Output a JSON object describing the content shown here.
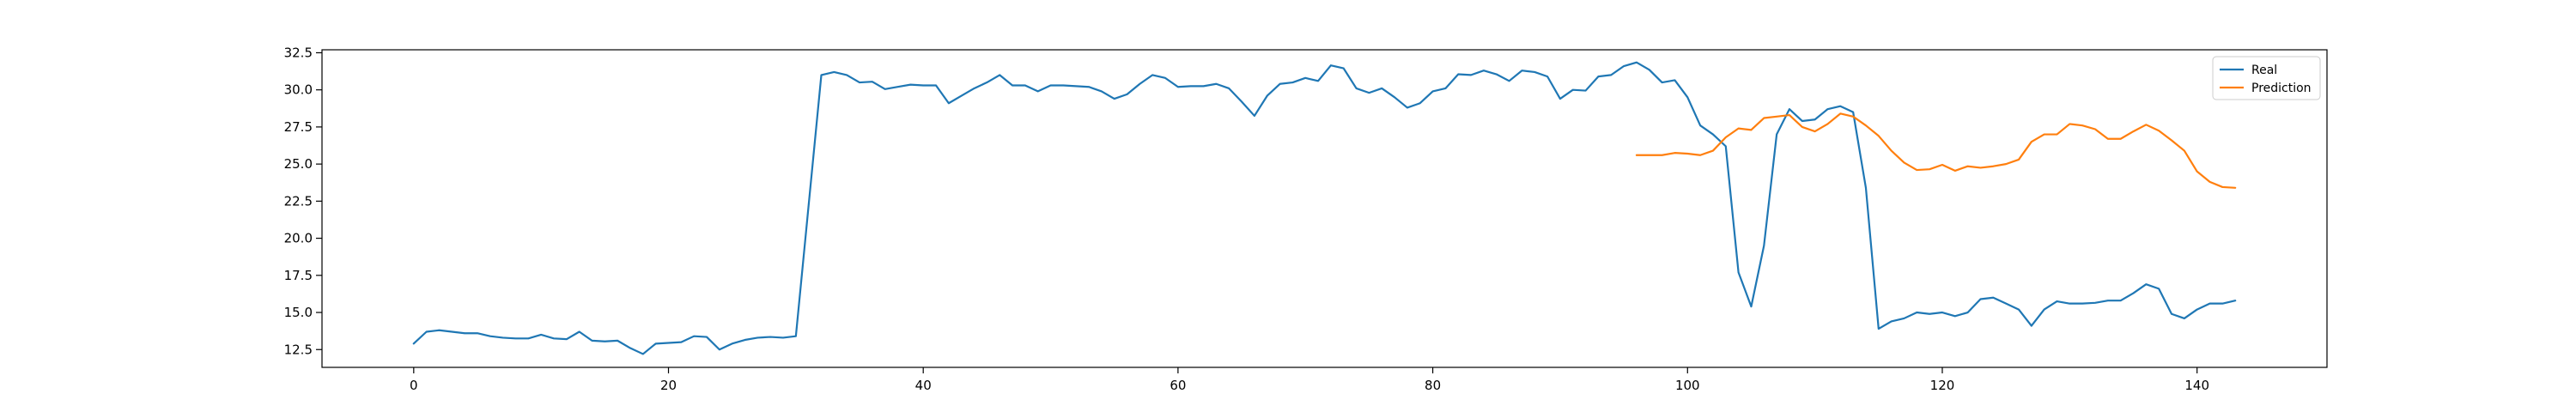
{
  "chart_data": {
    "type": "line",
    "title": "",
    "xlabel": "",
    "ylabel": "",
    "xlim": [
      -7.2,
      150.2
    ],
    "ylim": [
      11.3,
      32.7
    ],
    "x_ticks": [
      0,
      20,
      40,
      60,
      80,
      100,
      120,
      140
    ],
    "y_ticks": [
      12.5,
      15.0,
      17.5,
      20.0,
      22.5,
      25.0,
      27.5,
      30.0,
      32.5
    ],
    "y_tick_labels": [
      "12.5",
      "15.0",
      "17.5",
      "20.0",
      "22.5",
      "25.0",
      "27.5",
      "30.0",
      "32.5"
    ],
    "grid": false,
    "legend": {
      "position": "top-right"
    },
    "series": [
      {
        "name": "Real",
        "color": "#1f77b4",
        "x_start": 0,
        "values": [
          12.9,
          13.7,
          13.8,
          13.7,
          13.6,
          13.6,
          13.4,
          13.3,
          13.25,
          13.25,
          13.5,
          13.25,
          13.2,
          13.7,
          13.1,
          13.05,
          13.1,
          12.6,
          12.2,
          12.9,
          12.95,
          13.0,
          13.4,
          13.35,
          12.5,
          12.9,
          13.15,
          13.3,
          13.35,
          13.3,
          13.4,
          22.2,
          31.0,
          31.2,
          31.0,
          30.5,
          30.55,
          30.05,
          30.2,
          30.35,
          30.3,
          30.3,
          29.1,
          29.6,
          30.1,
          30.5,
          31.0,
          30.3,
          30.3,
          29.9,
          30.3,
          30.3,
          30.25,
          30.2,
          29.9,
          29.4,
          29.7,
          30.4,
          31.0,
          30.8,
          30.2,
          30.25,
          30.25,
          30.4,
          30.1,
          29.2,
          28.25,
          29.6,
          30.4,
          30.5,
          30.8,
          30.6,
          31.65,
          31.45,
          30.1,
          29.8,
          30.1,
          29.5,
          28.8,
          29.1,
          29.9,
          30.1,
          31.05,
          31.0,
          31.3,
          31.05,
          30.6,
          31.3,
          31.2,
          30.9,
          29.4,
          30.0,
          29.95,
          30.9,
          31.0,
          31.6,
          31.85,
          31.35,
          30.5,
          30.65,
          29.5,
          27.6,
          27.0,
          26.2,
          17.7,
          15.4,
          19.5,
          27.0,
          28.7,
          27.9,
          28.0,
          28.7,
          28.9,
          28.5,
          23.4,
          13.9,
          14.4,
          14.6,
          15.0,
          14.9,
          15.0,
          14.75,
          15.0,
          15.9,
          16.0,
          15.6,
          15.2,
          14.1,
          15.2,
          15.75,
          15.6,
          15.6,
          15.65,
          15.8,
          15.8,
          16.3,
          16.9,
          16.6,
          14.9,
          14.6,
          15.2,
          15.6,
          15.6,
          15.8
        ]
      },
      {
        "name": "Prediction",
        "color": "#ff7f0e",
        "x_start": 96,
        "values": [
          25.6,
          25.6,
          25.6,
          25.75,
          25.7,
          25.6,
          25.9,
          26.8,
          27.4,
          27.3,
          28.1,
          28.2,
          28.3,
          27.5,
          27.2,
          27.7,
          28.4,
          28.2,
          27.6,
          26.9,
          25.9,
          25.1,
          24.6,
          24.65,
          24.95,
          24.55,
          24.85,
          24.75,
          24.85,
          25.0,
          25.3,
          26.5,
          27.0,
          27.0,
          27.7,
          27.6,
          27.35,
          26.7,
          26.7,
          27.2,
          27.65,
          27.25,
          26.6,
          25.9,
          24.5,
          23.8,
          23.45,
          23.4
        ]
      }
    ]
  }
}
